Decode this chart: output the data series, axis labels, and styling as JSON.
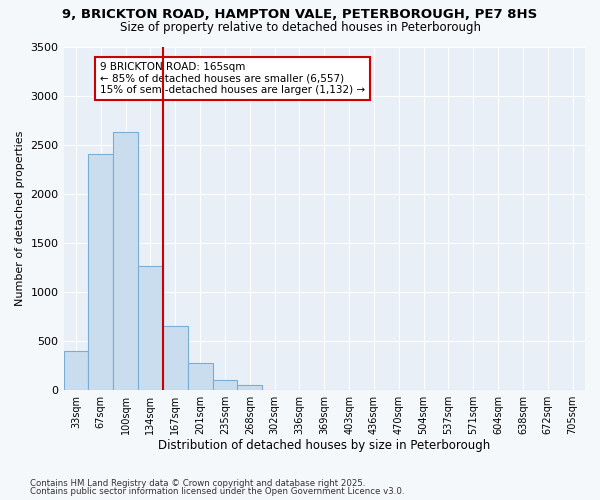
{
  "title_line1": "9, BRICKTON ROAD, HAMPTON VALE, PETERBOROUGH, PE7 8HS",
  "title_line2": "Size of property relative to detached houses in Peterborough",
  "xlabel": "Distribution of detached houses by size in Peterborough",
  "ylabel": "Number of detached properties",
  "categories": [
    "33sqm",
    "67sqm",
    "100sqm",
    "134sqm",
    "167sqm",
    "201sqm",
    "235sqm",
    "268sqm",
    "302sqm",
    "336sqm",
    "369sqm",
    "403sqm",
    "436sqm",
    "470sqm",
    "504sqm",
    "537sqm",
    "571sqm",
    "604sqm",
    "638sqm",
    "672sqm",
    "705sqm"
  ],
  "values": [
    390,
    2400,
    2630,
    1260,
    650,
    270,
    100,
    50,
    0,
    0,
    0,
    0,
    0,
    0,
    0,
    0,
    0,
    0,
    0,
    0,
    0
  ],
  "bar_color": "#c9ddef",
  "bar_edge_color": "#7aadd4",
  "vline_color": "#cc0000",
  "vline_x": 3.5,
  "annotation_text": "9 BRICKTON ROAD: 165sqm\n← 85% of detached houses are smaller (6,557)\n15% of semi-detached houses are larger (1,132) →",
  "annotation_box_facecolor": "#ffffff",
  "annotation_box_edgecolor": "#cc0000",
  "ylim": [
    0,
    3500
  ],
  "yticks": [
    0,
    500,
    1000,
    1500,
    2000,
    2500,
    3000,
    3500
  ],
  "fig_background": "#f5f8fb",
  "ax_background": "#e8eff6",
  "grid_color": "#ffffff",
  "footer_line1": "Contains HM Land Registry data © Crown copyright and database right 2025.",
  "footer_line2": "Contains public sector information licensed under the Open Government Licence v3.0."
}
